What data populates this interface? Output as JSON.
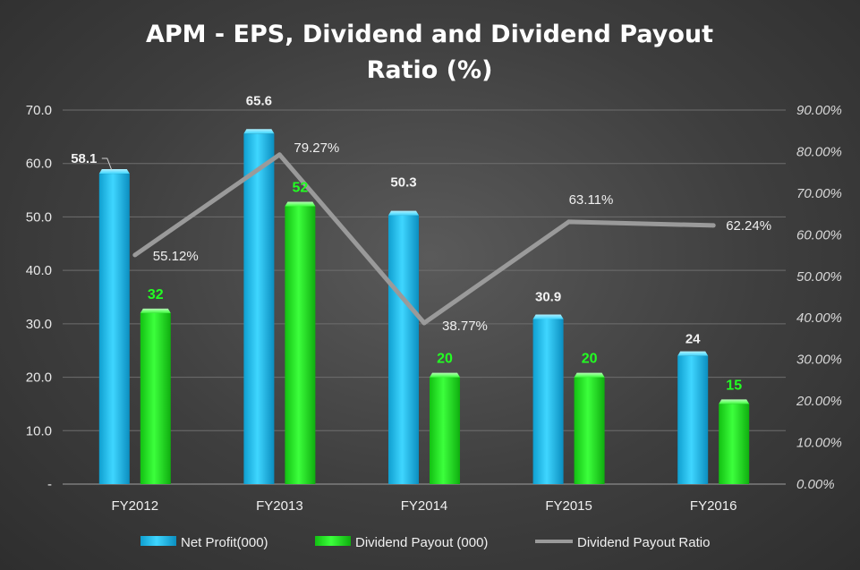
{
  "chart_data": {
    "type": "bar",
    "title_lines": [
      "APM - EPS,  Dividend and Dividend Payout",
      "Ratio (%)"
    ],
    "categories": [
      "FY2012",
      "FY2013",
      "FY2014",
      "FY2015",
      "FY2016"
    ],
    "series": [
      {
        "name": "Net Profit(000)",
        "type": "bar",
        "axis": "left",
        "color": "#1ec8f5",
        "values": [
          58.1,
          65.6,
          50.3,
          30.9,
          24
        ],
        "labels": [
          "58.1",
          "65.6",
          "50.3",
          "30.9",
          "24"
        ]
      },
      {
        "name": "Dividend Payout (000)",
        "type": "bar",
        "axis": "left",
        "color": "#22f522",
        "values": [
          32,
          52,
          20,
          20,
          15
        ],
        "labels": [
          "32",
          "52",
          "20",
          "20",
          "15"
        ]
      },
      {
        "name": "Dividend Payout Ratio",
        "type": "line",
        "axis": "right",
        "color": "#9a9a9a",
        "values": [
          55.12,
          79.27,
          38.77,
          63.11,
          62.24
        ],
        "labels": [
          "55.12%",
          "79.27%",
          "38.77%",
          "63.11%",
          "62.24%"
        ]
      }
    ],
    "y_left": {
      "min": 0,
      "max": 70,
      "ticks": [
        0,
        10,
        20,
        30,
        40,
        50,
        60,
        70
      ],
      "tick_labels": [
        "-",
        "10.0",
        "20.0",
        "30.0",
        "40.0",
        "50.0",
        "60.0",
        "70.0"
      ]
    },
    "y_right": {
      "min": 0,
      "max": 90,
      "ticks": [
        0,
        10,
        20,
        30,
        40,
        50,
        60,
        70,
        80,
        90
      ],
      "tick_labels": [
        "0.00%",
        "10.00%",
        "20.00%",
        "30.00%",
        "40.00%",
        "50.00%",
        "60.00%",
        "70.00%",
        "80.00%",
        "90.00%"
      ]
    },
    "legend_position": "bottom",
    "grid": true
  }
}
